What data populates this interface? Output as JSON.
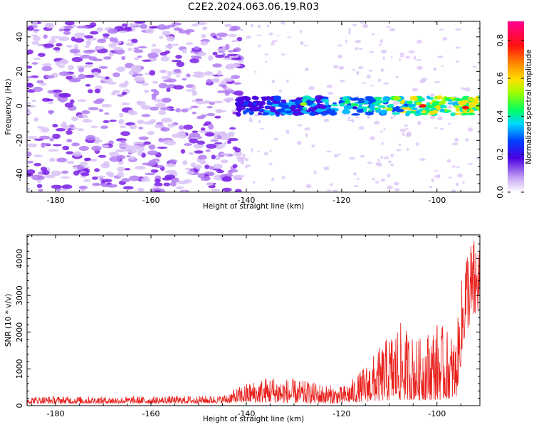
{
  "title": "C2E2.2024.063.06.19.R03",
  "colors": {
    "snr_line": "#e8201c",
    "heatmap_faint": "#d9c2f7",
    "heatmap_mid": "#b27cf2",
    "heatmap_strong": "#7a1ee6"
  },
  "chart_data": [
    {
      "type": "heatmap",
      "xlabel": "Height of straight line (km)",
      "ylabel": "Frequency (Hz)",
      "xlim": [
        -186,
        -91
      ],
      "ylim": [
        -50,
        49
      ],
      "x_ticks": [
        -180,
        -160,
        -140,
        -120,
        -100
      ],
      "y_ticks": [
        -40,
        -20,
        0,
        20,
        40
      ],
      "colorbar": {
        "label": "Normalized spectral amplitude",
        "range": [
          0,
          0.9
        ],
        "ticks": [
          0.0,
          0.2,
          0.4,
          0.6,
          0.8
        ]
      },
      "signal_band": {
        "x_range": [
          -142,
          -91
        ],
        "frequency_center": 0,
        "frequency_halfwidth": 5
      },
      "noise_region": {
        "x_range": [
          -186,
          -141
        ],
        "frequency_range": [
          -50,
          49
        ]
      }
    },
    {
      "type": "line",
      "xlabel": "Height of straight line (km)",
      "ylabel": "SNR (10 * v/v)",
      "xlim": [
        -186,
        -91
      ],
      "ylim": [
        0,
        4650
      ],
      "x_ticks": [
        -180,
        -160,
        -140,
        -120,
        -100
      ],
      "y_ticks": [
        0,
        1000,
        2000,
        3000,
        4000
      ],
      "envelope": [
        {
          "x": -186,
          "low": 60,
          "high": 260
        },
        {
          "x": -160,
          "low": 60,
          "high": 250
        },
        {
          "x": -145,
          "low": 70,
          "high": 280
        },
        {
          "x": -140,
          "low": 80,
          "high": 620
        },
        {
          "x": -135,
          "low": 80,
          "high": 820
        },
        {
          "x": -130,
          "low": 70,
          "high": 720
        },
        {
          "x": -125,
          "low": 60,
          "high": 620
        },
        {
          "x": -120,
          "low": 60,
          "high": 520
        },
        {
          "x": -117,
          "low": 90,
          "high": 800
        },
        {
          "x": -112,
          "low": 120,
          "high": 1600
        },
        {
          "x": -108,
          "low": 150,
          "high": 2300
        },
        {
          "x": -104,
          "low": 150,
          "high": 1800
        },
        {
          "x": -100,
          "low": 150,
          "high": 2300
        },
        {
          "x": -96,
          "low": 200,
          "high": 1900
        },
        {
          "x": -94,
          "low": 2000,
          "high": 4500
        },
        {
          "x": -91,
          "low": 2600,
          "high": 4650
        }
      ]
    }
  ]
}
